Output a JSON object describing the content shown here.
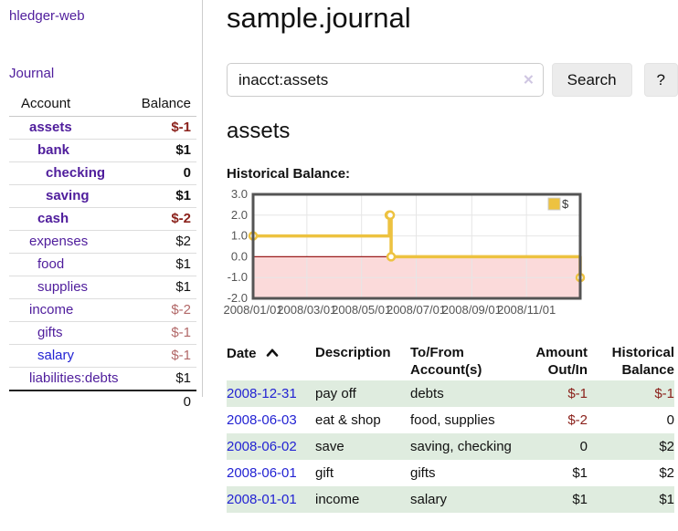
{
  "app": {
    "brand": "hledger-web"
  },
  "sidebar": {
    "journal_link": "Journal",
    "accounts_table": {
      "headers": {
        "account": "Account",
        "balance": "Balance"
      },
      "rows": [
        {
          "name": "assets",
          "level": 1,
          "bold": true,
          "balance": "$-1"
        },
        {
          "name": "bank",
          "level": 2,
          "bold": true,
          "balance": "$1"
        },
        {
          "name": "checking",
          "level": 3,
          "bold": true,
          "balance": "0"
        },
        {
          "name": "saving",
          "level": 3,
          "bold": true,
          "balance": "$1"
        },
        {
          "name": "cash",
          "level": 2,
          "bold": true,
          "balance": "$-2"
        },
        {
          "name": "expenses",
          "level": 1,
          "bold": false,
          "balance": "$2"
        },
        {
          "name": "food",
          "level": 2,
          "bold": false,
          "balance": "$1"
        },
        {
          "name": "supplies",
          "level": 2,
          "bold": false,
          "balance": "$1"
        },
        {
          "name": "income",
          "level": 1,
          "bold": false,
          "balance": "$-2"
        },
        {
          "name": "gifts",
          "level": 2,
          "bold": false,
          "balance": "$-1"
        },
        {
          "name": "salary",
          "level": 2,
          "bold": false,
          "balance": "$-1",
          "unvisited": true
        },
        {
          "name": "liabilities:debts",
          "level": 1,
          "bold": false,
          "balance": "$1"
        }
      ],
      "total": "0"
    }
  },
  "header": {
    "title": "sample.journal"
  },
  "search": {
    "value": "inacct:assets",
    "clear_icon": "✕",
    "button": "Search",
    "help_button": "?"
  },
  "account_page": {
    "heading": "assets",
    "chart_title": "Historical Balance:"
  },
  "chart_data": {
    "type": "line",
    "step": true,
    "title": "Historical Balance:",
    "series": [
      {
        "name": "$",
        "points": [
          [
            "2008-01-01",
            1
          ],
          [
            "2008-06-01",
            2
          ],
          [
            "2008-06-02",
            2
          ],
          [
            "2008-06-03",
            0
          ],
          [
            "2008-12-31",
            -1
          ]
        ]
      }
    ],
    "ylim": [
      -2,
      3
    ],
    "yticks": [
      3.0,
      2.0,
      1.0,
      0.0,
      -1.0,
      -2.0
    ],
    "xlim": [
      "2008-01-01",
      "2008-12-31"
    ],
    "xticks": [
      {
        "date": "2008-01-01",
        "label": "2008/01/01"
      },
      {
        "date": "2008-03-01",
        "label": "2008/03/01"
      },
      {
        "date": "2008-05-01",
        "label": "2008/05/01"
      },
      {
        "date": "2008-07-01",
        "label": "2008/07/01"
      },
      {
        "date": "2008-09-01",
        "label": "2008/09/01"
      },
      {
        "date": "2008-11-01",
        "label": "2008/11/01"
      }
    ],
    "legend": {
      "label": "$",
      "position": "top-right"
    },
    "grid": true,
    "colors": {
      "line": "#edc240",
      "marker_fill": "#ffffff",
      "negative_fill": "#fbdada",
      "zero_line": "#9a1c1c",
      "grid": "#e6e6e6",
      "border": "#545454",
      "tick_text": "#545454"
    }
  },
  "register": {
    "columns": [
      {
        "label": "Date",
        "sort": "asc"
      },
      {
        "label": "Description"
      },
      {
        "label": "To/From Account(s)"
      },
      {
        "label": "Amount Out/In",
        "align": "right"
      },
      {
        "label": "Historical Balance",
        "align": "right"
      }
    ],
    "rows": [
      {
        "date": "2008-12-31",
        "description": "pay off",
        "accounts": "debts",
        "amount": "$-1",
        "balance": "$-1"
      },
      {
        "date": "2008-06-03",
        "description": "eat & shop",
        "accounts": "food, supplies",
        "amount": "$-2",
        "balance": "0"
      },
      {
        "date": "2008-06-02",
        "description": "save",
        "accounts": "saving, checking",
        "amount": "0",
        "balance": "$2"
      },
      {
        "date": "2008-06-01",
        "description": "gift",
        "accounts": "gifts",
        "amount": "$1",
        "balance": "$2"
      },
      {
        "date": "2008-01-01",
        "description": "income",
        "accounts": "salary",
        "amount": "$1",
        "balance": "$1"
      }
    ]
  },
  "colors": {
    "link_purple": "#4f1d9c",
    "link_blue": "#2323d3",
    "negative_red": "#8b221c",
    "negative_soft": "#b26868",
    "row_shade_green": "#dfecdf",
    "button_gray": "#ececec"
  }
}
